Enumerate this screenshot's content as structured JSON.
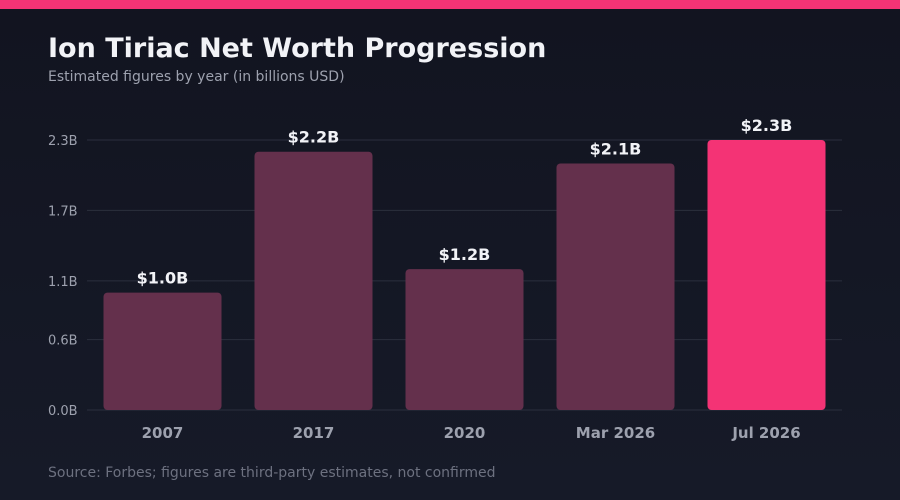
{
  "header": {
    "title": "Ion Tiriac Net Worth Progression",
    "subtitle": "Estimated figures by year (in billions USD)"
  },
  "footer": {
    "source": "Source: Forbes; figures are third-party estimates, not confirmed"
  },
  "colors": {
    "accent": "#f43375",
    "bar": "#64304c",
    "background": "#121420",
    "grid": "#2b2f3d",
    "value_label": "#f2f3f7",
    "tick_label": "#9da1ae"
  },
  "chart_data": {
    "type": "bar",
    "categories": [
      "2007",
      "2017",
      "2020",
      "Mar 2026",
      "Jul 2026"
    ],
    "values": [
      1.0,
      2.2,
      1.2,
      2.1,
      2.3
    ],
    "value_labels": [
      "$1.0B",
      "$2.2B",
      "$1.2B",
      "$2.1B",
      "$2.3B"
    ],
    "highlight_index": 4,
    "y_ticks": [
      0.0,
      0.6,
      1.1,
      1.7,
      2.3
    ],
    "y_tick_labels": [
      "0.0B",
      "0.6B",
      "1.1B",
      "1.7B",
      "2.3B"
    ],
    "ylim": [
      0,
      2.3
    ],
    "grid": true,
    "legend": "none",
    "title": "Ion Tiriac Net Worth Progression",
    "subtitle": "Estimated figures by year (in billions USD)",
    "xlabel": "",
    "ylabel": ""
  }
}
